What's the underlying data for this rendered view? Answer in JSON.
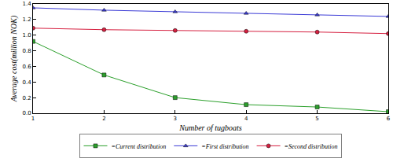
{
  "chart_data": {
    "type": "line",
    "x_label": "Number of tugboats",
    "y_label": "Average cost(million NOK)",
    "x": [
      1,
      2,
      3,
      4,
      5,
      6
    ],
    "xlim": [
      1,
      6
    ],
    "xticks": [
      1,
      2,
      3,
      4,
      5,
      6
    ],
    "ylim": [
      0,
      1.4
    ],
    "yticks": [
      {
        "value": 0,
        "label": "0.0"
      },
      0.2,
      0.4,
      0.6,
      0.8,
      {
        "value": 1,
        "label": "1.0"
      },
      1.2,
      1.4
    ],
    "grid": false,
    "legend": "bottom",
    "series": [
      {
        "name": "=Current distribution",
        "color": "#2ca02c",
        "marker": "square",
        "line_style": "solid",
        "values": [
          0.92,
          0.49,
          0.2,
          0.11,
          0.08,
          0.02
        ]
      },
      {
        "name": "=First distribution",
        "color": "#3b3bd6",
        "marker": "triangle-up",
        "line_style": "solid",
        "values": [
          1.35,
          1.32,
          1.3,
          1.28,
          1.26,
          1.24
        ]
      },
      {
        "name": "=Second distribution",
        "color": "#d62040",
        "marker": "circle",
        "line_style": "solid",
        "values": [
          1.09,
          1.07,
          1.06,
          1.05,
          1.04,
          1.02
        ]
      }
    ]
  }
}
